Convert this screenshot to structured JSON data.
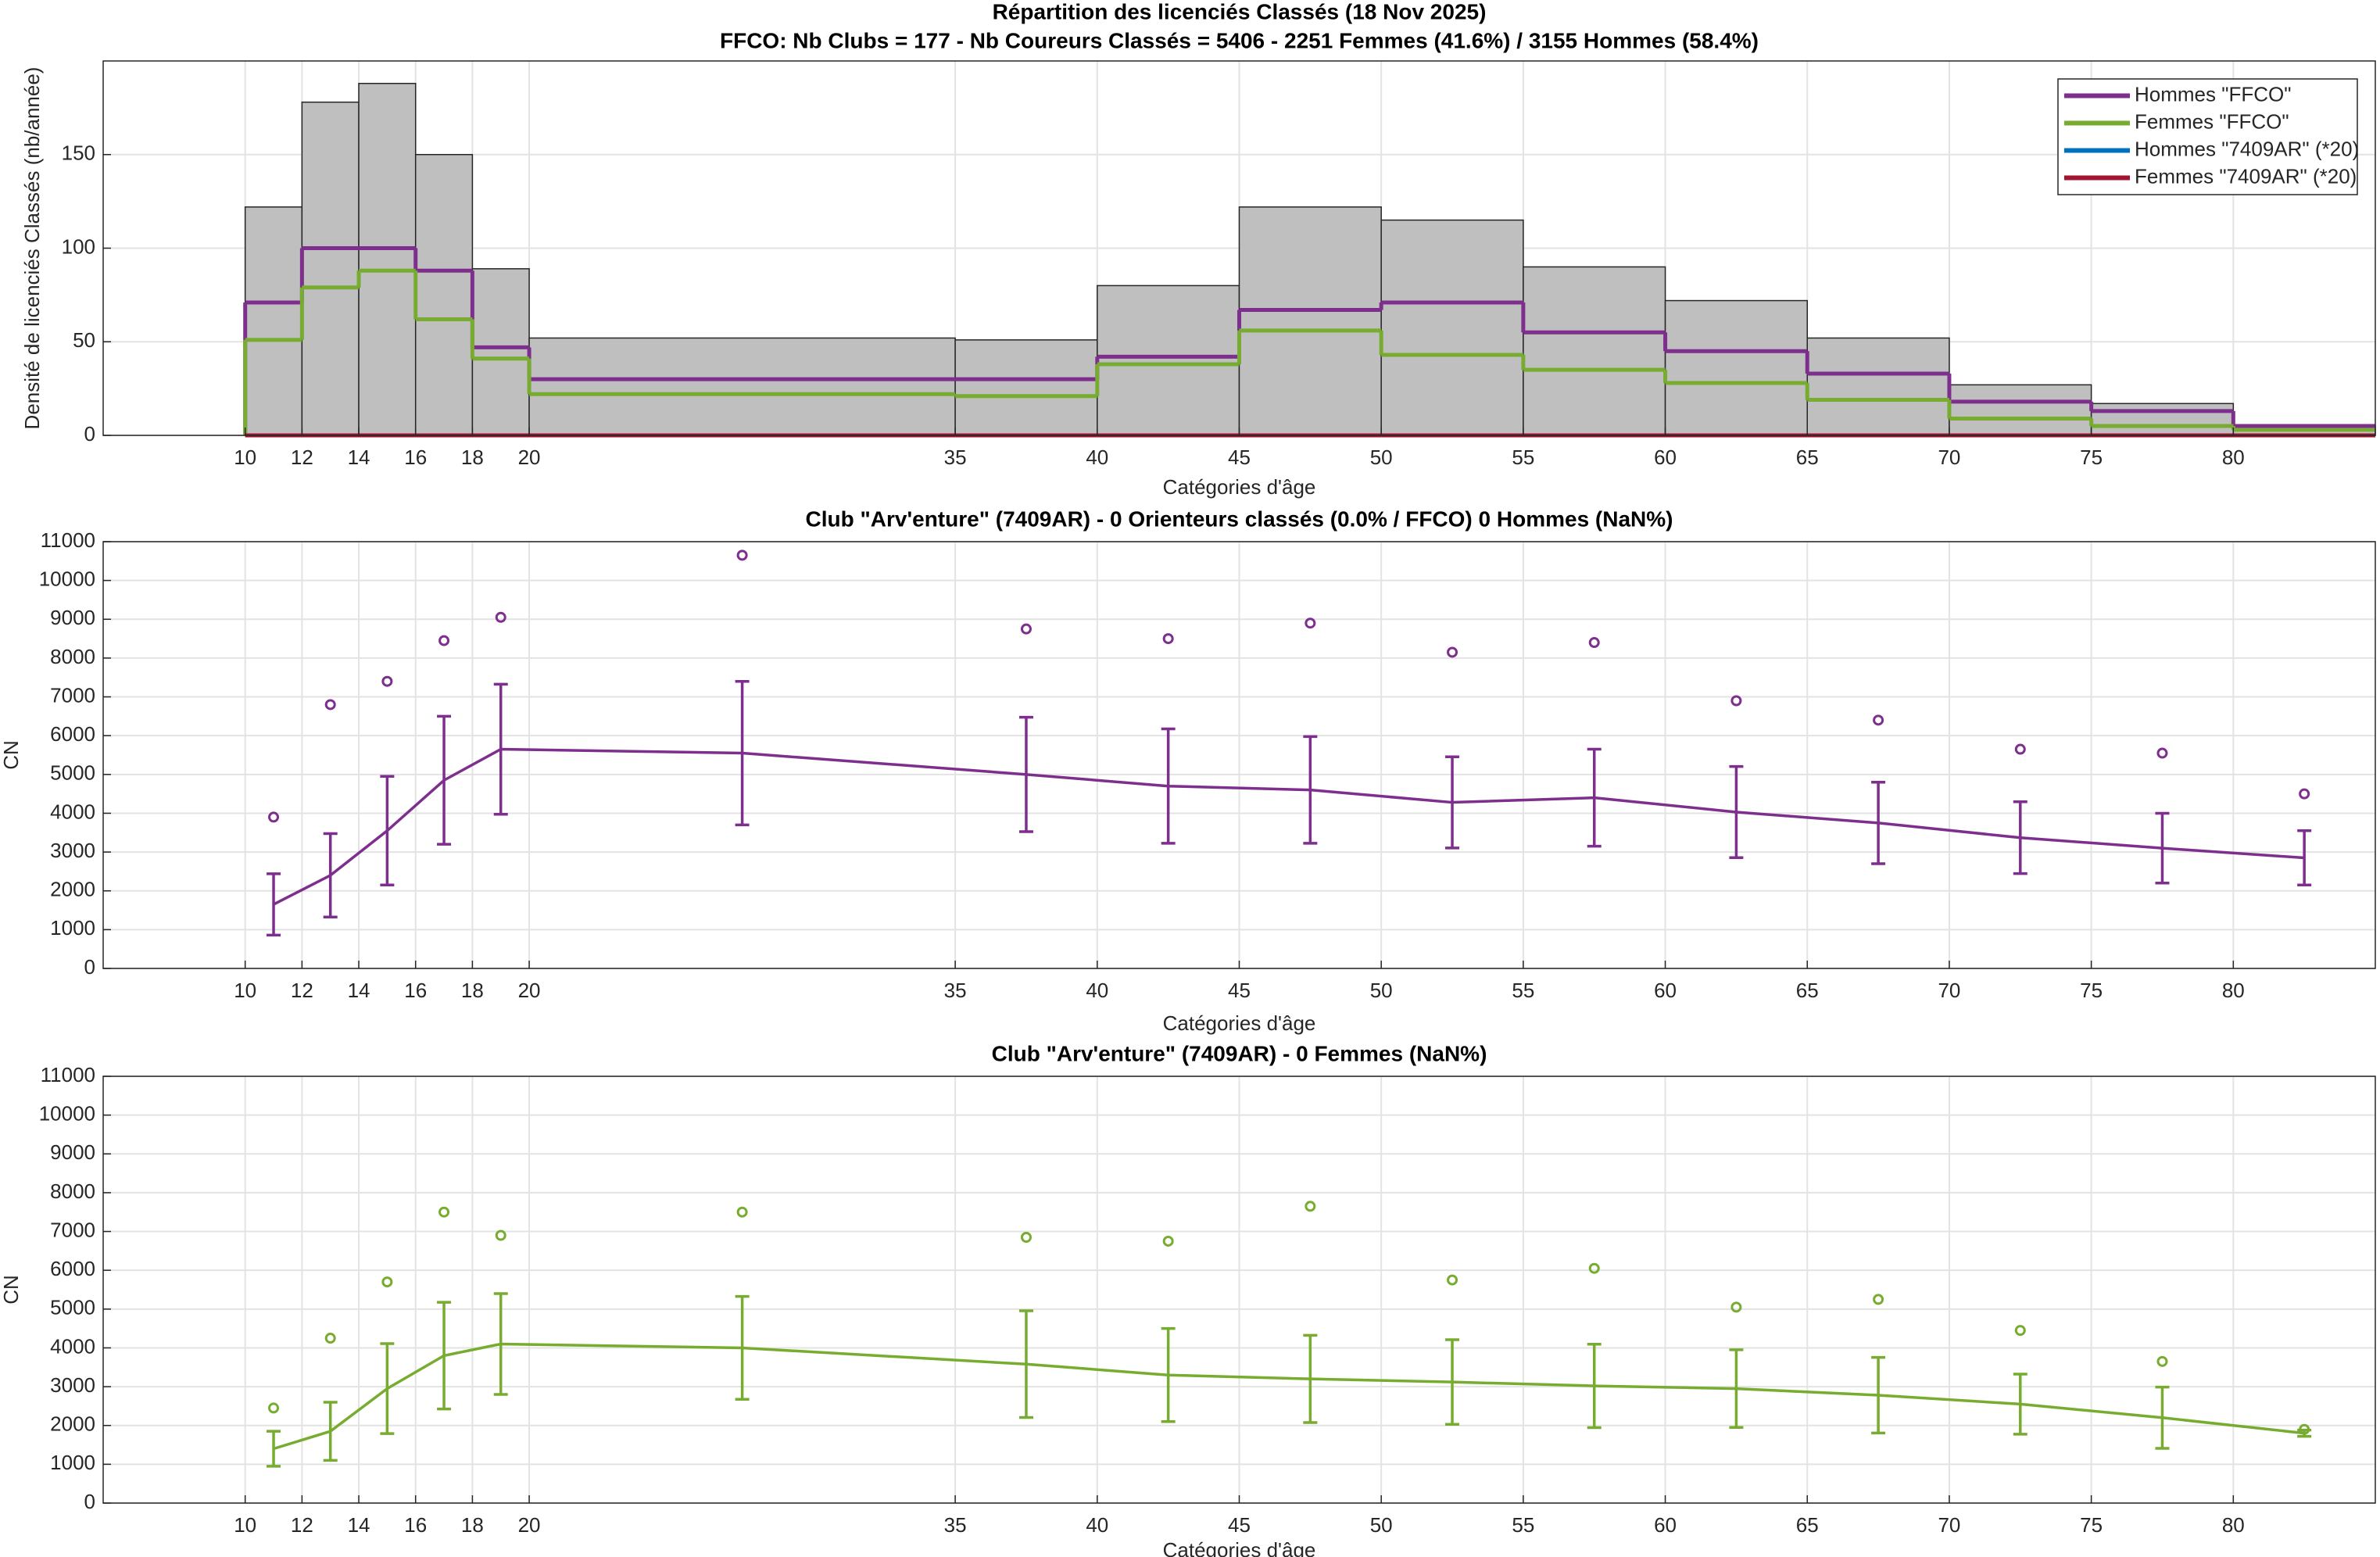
{
  "chart_data": [
    {
      "type": "histogram",
      "title": "Répartition des licenciés Classés (18 Nov 2025)",
      "subtitle": "FFCO: Nb Clubs = 177   -   Nb Coureurs Classés = 5406   -   2251 Femmes (41.6%) / 3155 Hommes (58.4%)",
      "xlabel": "Catégories d'âge",
      "ylabel": "Densité de licenciés Classés (nb/année)",
      "bins": [
        10,
        12,
        14,
        16,
        18,
        20,
        35,
        40,
        45,
        50,
        55,
        60,
        65,
        70,
        75,
        80,
        85
      ],
      "values": [
        122,
        178,
        188,
        150,
        89,
        52,
        51,
        80,
        122,
        115,
        90,
        72,
        52,
        27,
        17,
        5
      ],
      "color": "#bfbfbf",
      "series": [
        {
          "name": "Hommes \"FFCO\"",
          "color": "#7e2f8e",
          "values": [
            71,
            100,
            100,
            88,
            47,
            30,
            30,
            42,
            67,
            71,
            55,
            45,
            33,
            18,
            13,
            5
          ]
        },
        {
          "name": "Femmes \"FFCO\"",
          "color": "#77ac30",
          "values": [
            51,
            79,
            88,
            62,
            41,
            22,
            21,
            38,
            56,
            43,
            35,
            28,
            19,
            9,
            5,
            3
          ]
        },
        {
          "name": "Hommes \"7409AR\" (*20)",
          "color": "#0072bd",
          "values": [
            0,
            0,
            0,
            0,
            0,
            0,
            0,
            0,
            0,
            0,
            0,
            0,
            0,
            0,
            0,
            0
          ]
        },
        {
          "name": "Femmes \"7409AR\" (*20)",
          "color": "#a2142f",
          "values": [
            0,
            0,
            0,
            0,
            0,
            0,
            0,
            0,
            0,
            0,
            0,
            0,
            0,
            0,
            0,
            0
          ]
        }
      ],
      "xlim": [
        5,
        85
      ],
      "xticks": [
        10,
        12,
        14,
        16,
        18,
        20,
        35,
        40,
        45,
        50,
        55,
        60,
        65,
        70,
        75,
        80
      ],
      "ylim": [
        0,
        200
      ],
      "yticks": [
        0,
        50,
        100,
        150
      ],
      "grid": true,
      "legend": "upper-right"
    },
    {
      "type": "errorbar",
      "title": "Club \"Arv'enture\" (7409AR)  -  0 Orienteurs classés (0.0% / FFCO)  0 Hommes (NaN%)",
      "xlabel": "Catégories d'âge",
      "ylabel": "CN",
      "x": [
        11,
        13,
        15,
        17,
        19,
        27.5,
        37.5,
        42.5,
        47.5,
        52.5,
        57.5,
        62.5,
        67.5,
        72.5,
        77.5,
        82.5
      ],
      "values": [
        1650,
        2400,
        3550,
        4850,
        5650,
        5550,
        5000,
        4700,
        4600,
        4280,
        4400,
        4030,
        3750,
        3370,
        3100,
        2850
      ],
      "errors": [
        790,
        1075,
        1400,
        1650,
        1675,
        1850,
        1475,
        1475,
        1375,
        1175,
        1250,
        1175,
        1050,
        925,
        900,
        700
      ],
      "outliers": [
        3900,
        6800,
        7400,
        8450,
        9050,
        10650,
        8750,
        8500,
        8900,
        8150,
        8400,
        6900,
        6400,
        5650,
        5550,
        4500
      ],
      "color": "#7e2f8e",
      "xlim": [
        5,
        85
      ],
      "xticks": [
        10,
        12,
        14,
        16,
        18,
        20,
        35,
        40,
        45,
        50,
        55,
        60,
        65,
        70,
        75,
        80
      ],
      "ylim": [
        0,
        11000
      ],
      "yticks": [
        0,
        1000,
        2000,
        3000,
        4000,
        5000,
        6000,
        7000,
        8000,
        9000,
        10000,
        11000
      ],
      "grid": true
    },
    {
      "type": "errorbar",
      "title": "Club \"Arv'enture\" (7409AR)  -  0 Femmes (NaN%)",
      "xlabel": "Catégories d'âge",
      "ylabel": "CN",
      "x": [
        11,
        13,
        15,
        17,
        19,
        27.5,
        37.5,
        42.5,
        47.5,
        52.5,
        57.5,
        62.5,
        67.5,
        72.5,
        77.5,
        82.5
      ],
      "values": [
        1400,
        1850,
        2950,
        3800,
        4100,
        4000,
        3580,
        3300,
        3200,
        3120,
        3020,
        2950,
        2780,
        2550,
        2200,
        1800
      ],
      "errors": [
        450,
        750,
        1160,
        1375,
        1300,
        1325,
        1375,
        1200,
        1125,
        1090,
        1075,
        1000,
        975,
        775,
        790,
        80
      ],
      "outliers": [
        2450,
        4250,
        5700,
        7500,
        6900,
        7500,
        6850,
        6750,
        7650,
        5750,
        6050,
        5050,
        5250,
        4450,
        3650,
        1900
      ],
      "color": "#77ac30",
      "xlim": [
        5,
        85
      ],
      "xticks": [
        10,
        12,
        14,
        16,
        18,
        20,
        35,
        40,
        45,
        50,
        55,
        60,
        65,
        70,
        75,
        80
      ],
      "ylim": [
        0,
        11000
      ],
      "yticks": [
        0,
        1000,
        2000,
        3000,
        4000,
        5000,
        6000,
        7000,
        8000,
        9000,
        10000,
        11000
      ],
      "grid": true
    }
  ]
}
